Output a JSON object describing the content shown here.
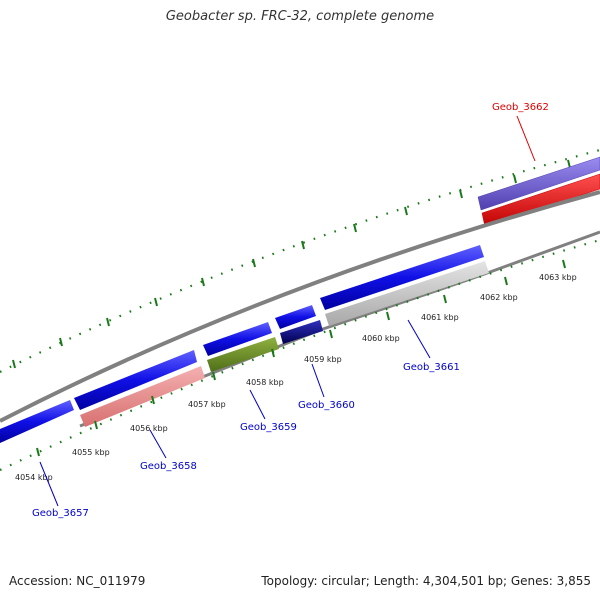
{
  "header": {
    "title": "Geobacter sp. FRC-32, complete genome"
  },
  "footer": {
    "accession": "Accession: NC_011979",
    "genome_info": "Topology: circular; Length: 4,304,501 bp; Genes: 3,855"
  },
  "ruler": {
    "ticks": [
      {
        "label": "4054 kbp"
      },
      {
        "label": "4055 kbp"
      },
      {
        "label": "4056 kbp"
      },
      {
        "label": "4057 kbp"
      },
      {
        "label": "4058 kbp"
      },
      {
        "label": "4059 kbp"
      },
      {
        "label": "4060 kbp"
      },
      {
        "label": "4061 kbp"
      },
      {
        "label": "4062 kbp"
      },
      {
        "label": "4063 kbp"
      }
    ]
  },
  "genes": [
    {
      "name": "Geob_3657",
      "color": "#0000cc"
    },
    {
      "name": "Geob_3658",
      "color": "#0000cc"
    },
    {
      "name": "Geob_3659",
      "color": "#0000cc"
    },
    {
      "name": "Geob_3660",
      "color": "#0000cc"
    },
    {
      "name": "Geob_3661",
      "color": "#0000cc"
    },
    {
      "name": "Geob_3662",
      "color": "#dd0000"
    }
  ],
  "colors": {
    "forward_cds": "#1010e6",
    "tick": "#1a7a1a",
    "backbone": "#808080",
    "feature_pink": "#e88a8a",
    "feature_olive": "#6a8f2a",
    "feature_navy": "#0a0a80",
    "feature_lightgray": "#c8c8c8",
    "feature_purple": "#7060d0",
    "feature_red": "#ee1010"
  }
}
